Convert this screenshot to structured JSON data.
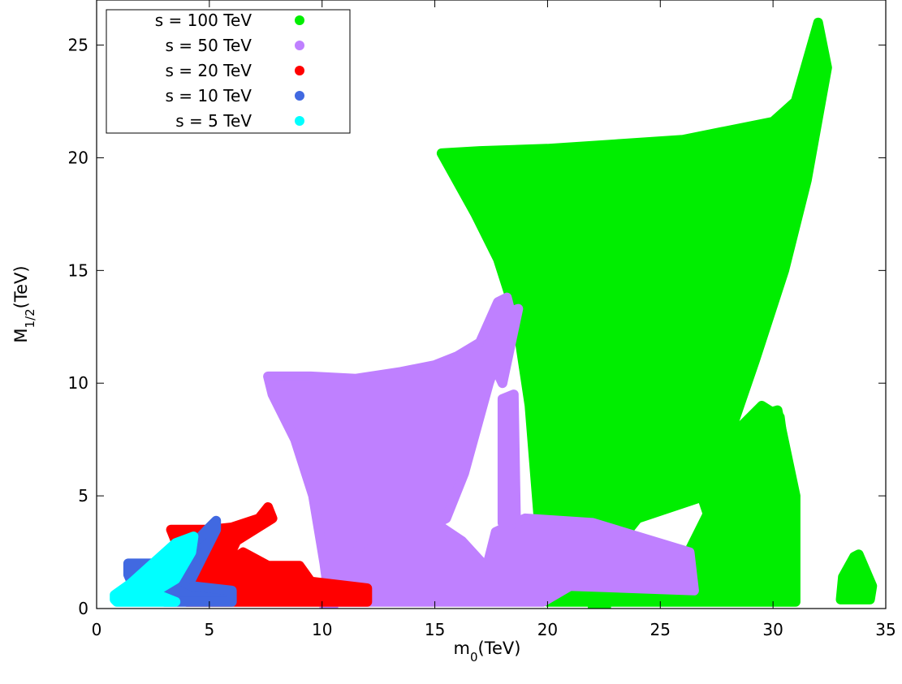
{
  "chart_data": {
    "type": "scatter",
    "title": "",
    "xlabel": {
      "base": "m",
      "sub": "0",
      "tail": "(TeV)"
    },
    "ylabel": {
      "base": "M",
      "sub": "1/2",
      "tail": "(TeV)"
    },
    "xlim": [
      0,
      35
    ],
    "ylim": [
      0,
      27
    ],
    "xticks": [
      0,
      5,
      10,
      15,
      20,
      25,
      30,
      35
    ],
    "yticks": [
      0,
      5,
      10,
      15,
      20,
      25
    ],
    "grid": false,
    "legend_position": "top-left",
    "series": [
      {
        "name": "s = 100 TeV",
        "color": "#00ee00",
        "regions": [
          [
            [
              15.3,
              20.2
            ],
            [
              17.0,
              20.3
            ],
            [
              20.0,
              20.4
            ],
            [
              23.0,
              20.6
            ],
            [
              26.0,
              20.8
            ],
            [
              28.0,
              21.2
            ],
            [
              30.0,
              21.6
            ],
            [
              31.0,
              22.5
            ],
            [
              32.0,
              26.0
            ],
            [
              32.4,
              24.0
            ],
            [
              31.5,
              19.0
            ],
            [
              30.5,
              15.0
            ],
            [
              29.2,
              11.0
            ],
            [
              28.0,
              7.5
            ],
            [
              27.0,
              5.0
            ],
            [
              24.0,
              4.0
            ],
            [
              22.8,
              2.5
            ],
            [
              21.8,
              1.5
            ],
            [
              21.0,
              0.6
            ],
            [
              20.0,
              0.8
            ],
            [
              19.6,
              4.0
            ],
            [
              19.2,
              9.0
            ],
            [
              18.6,
              13.0
            ],
            [
              17.8,
              15.5
            ],
            [
              16.8,
              17.5
            ]
          ],
          [
            [
              20.0,
              0.3
            ],
            [
              31.0,
              0.3
            ],
            [
              31.0,
              5.0
            ],
            [
              30.2,
              8.8
            ],
            [
              29.2,
              8.5
            ],
            [
              28.0,
              6.0
            ],
            [
              26.0,
              2.0
            ],
            [
              23.0,
              1.0
            ],
            [
              20.2,
              0.8
            ]
          ],
          [
            [
              26.5,
              6.0
            ],
            [
              29.5,
              9.0
            ],
            [
              30.3,
              8.5
            ],
            [
              30.9,
              4.0
            ],
            [
              29.5,
              2.0
            ],
            [
              27.5,
              3.0
            ]
          ],
          [
            [
              22.0,
              0.0
            ],
            [
              22.6,
              0.0
            ],
            [
              22.6,
              0.6
            ],
            [
              22.0,
              0.6
            ]
          ],
          [
            [
              33.0,
              0.4
            ],
            [
              34.3,
              0.4
            ],
            [
              34.4,
              1.0
            ],
            [
              33.8,
              2.4
            ],
            [
              33.6,
              2.3
            ],
            [
              33.1,
              1.4
            ]
          ]
        ]
      },
      {
        "name": "s = 50 TeV",
        "color": "#bf80ff",
        "regions": [
          [
            [
              7.6,
              10.3
            ],
            [
              9.5,
              10.3
            ],
            [
              11.5,
              10.2
            ],
            [
              13.5,
              10.5
            ],
            [
              15.0,
              10.8
            ],
            [
              16.0,
              11.2
            ],
            [
              17.0,
              11.8
            ],
            [
              17.8,
              13.6
            ],
            [
              18.2,
              13.8
            ],
            [
              18.4,
              13.0
            ],
            [
              17.4,
              10.0
            ],
            [
              16.3,
              6.0
            ],
            [
              15.5,
              4.0
            ],
            [
              14.5,
              3.5
            ],
            [
              13.5,
              3.2
            ],
            [
              12.5,
              3.4
            ],
            [
              11.9,
              2.0
            ],
            [
              11.0,
              0.8
            ],
            [
              10.3,
              0.5
            ],
            [
              10.1,
              2.0
            ],
            [
              9.6,
              5.0
            ],
            [
              8.8,
              7.5
            ],
            [
              7.8,
              9.5
            ]
          ],
          [
            [
              10.1,
              0.3
            ],
            [
              19.8,
              0.3
            ],
            [
              21.0,
              1.0
            ],
            [
              26.5,
              0.8
            ],
            [
              26.3,
              2.5
            ],
            [
              22.0,
              3.8
            ],
            [
              19.0,
              4.0
            ],
            [
              17.7,
              3.4
            ],
            [
              17.3,
              1.8
            ],
            [
              16.2,
              3.0
            ],
            [
              15.3,
              3.6
            ],
            [
              13.5,
              3.5
            ],
            [
              11.8,
              3.0
            ],
            [
              11.0,
              1.5
            ],
            [
              10.5,
              0.6
            ]
          ],
          [
            [
              18.0,
              3.8
            ],
            [
              18.6,
              4.0
            ],
            [
              18.5,
              9.5
            ],
            [
              18.0,
              9.3
            ]
          ],
          [
            [
              17.9,
              13.0
            ],
            [
              18.7,
              13.3
            ],
            [
              18.0,
              10.0
            ],
            [
              17.3,
              11.5
            ]
          ],
          [
            [
              10.1,
              0.0
            ],
            [
              10.5,
              0.0
            ],
            [
              10.5,
              0.5
            ],
            [
              10.1,
              0.5
            ]
          ]
        ]
      },
      {
        "name": "s = 20 TeV",
        "color": "#ff0000",
        "regions": [
          [
            [
              3.3,
              3.5
            ],
            [
              5.0,
              3.5
            ],
            [
              6.0,
              3.6
            ],
            [
              7.2,
              4.0
            ],
            [
              7.6,
              4.5
            ],
            [
              7.8,
              4.0
            ],
            [
              6.2,
              3.0
            ],
            [
              5.5,
              1.5
            ],
            [
              4.5,
              0.7
            ],
            [
              3.6,
              0.5
            ],
            [
              3.5,
              1.2
            ],
            [
              3.6,
              2.5
            ],
            [
              3.5,
              3.0
            ]
          ],
          [
            [
              4.0,
              0.3
            ],
            [
              12.0,
              0.3
            ],
            [
              12.0,
              0.9
            ],
            [
              9.5,
              1.2
            ],
            [
              9.0,
              1.9
            ],
            [
              7.6,
              1.9
            ],
            [
              6.5,
              2.5
            ],
            [
              5.0,
              1.5
            ],
            [
              4.2,
              0.8
            ]
          ]
        ]
      },
      {
        "name": "s = 10 TeV",
        "color": "#4169e1",
        "regions": [
          [
            [
              1.4,
              2.0
            ],
            [
              2.7,
              2.0
            ],
            [
              3.3,
              2.2
            ],
            [
              3.2,
              1.5
            ],
            [
              4.2,
              1.0
            ],
            [
              6.0,
              0.8
            ],
            [
              6.0,
              0.3
            ],
            [
              3.0,
              0.3
            ],
            [
              1.8,
              0.6
            ],
            [
              1.4,
              1.5
            ]
          ],
          [
            [
              3.5,
              2.0
            ],
            [
              5.0,
              3.6
            ],
            [
              5.3,
              3.9
            ],
            [
              5.3,
              3.5
            ],
            [
              4.2,
              1.3
            ],
            [
              3.5,
              1.6
            ]
          ]
        ]
      },
      {
        "name": "s = 5 TeV",
        "color": "#00ffff",
        "regions": [
          [
            [
              0.8,
              0.6
            ],
            [
              1.5,
              1.1
            ],
            [
              2.5,
              2.0
            ],
            [
              3.5,
              2.9
            ],
            [
              4.3,
              3.2
            ],
            [
              4.2,
              2.5
            ],
            [
              3.5,
              1.3
            ],
            [
              2.5,
              0.7
            ],
            [
              3.5,
              0.3
            ],
            [
              0.9,
              0.3
            ],
            [
              0.8,
              0.4
            ]
          ]
        ]
      }
    ]
  }
}
